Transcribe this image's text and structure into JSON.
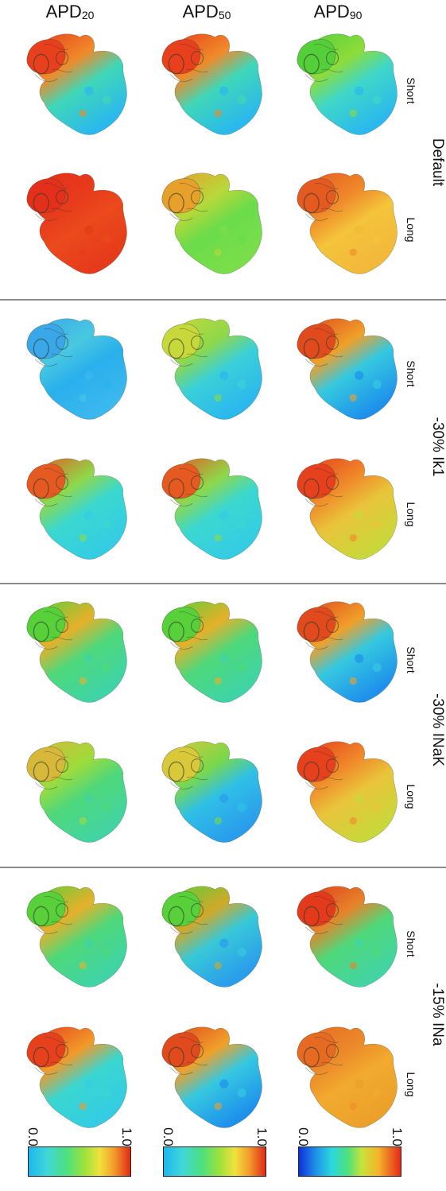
{
  "columns": [
    {
      "base": "APD",
      "sub": "20"
    },
    {
      "base": "APD",
      "sub": "50"
    },
    {
      "base": "APD",
      "sub": "90"
    }
  ],
  "groups": [
    {
      "label": "Default",
      "rows": [
        "Short",
        "Long"
      ]
    },
    {
      "label": "-30% Ik1",
      "rows": [
        "Short",
        "Long"
      ]
    },
    {
      "label": "-30% INaK",
      "rows": [
        "Short",
        "Long"
      ]
    },
    {
      "label": "-15% INa",
      "rows": [
        "Short",
        "Long"
      ]
    }
  ],
  "colorbars": [
    {
      "min": "0.0",
      "max": "1.0",
      "colormap": "jet-cyan"
    },
    {
      "min": "0.0",
      "max": "1.0",
      "colormap": "jet-cyan"
    },
    {
      "min": "0.0",
      "max": "1.0",
      "colormap": "jet"
    }
  ],
  "maps": [
    {
      "group": 0,
      "row": 0,
      "col": 0,
      "scheme": "hot-top-cool-bottom"
    },
    {
      "group": 0,
      "row": 0,
      "col": 1,
      "scheme": "hot-top-cool-bottom"
    },
    {
      "group": 0,
      "row": 0,
      "col": 2,
      "scheme": "green-top-cyan-bottom"
    },
    {
      "group": 0,
      "row": 1,
      "col": 0,
      "scheme": "all-red"
    },
    {
      "group": 0,
      "row": 1,
      "col": 1,
      "scheme": "yellow-green"
    },
    {
      "group": 0,
      "row": 1,
      "col": 2,
      "scheme": "orange-yellow"
    },
    {
      "group": 1,
      "row": 0,
      "col": 0,
      "scheme": "all-cyan-blue"
    },
    {
      "group": 1,
      "row": 0,
      "col": 1,
      "scheme": "yellowgreen-top-cyan-bottom"
    },
    {
      "group": 1,
      "row": 0,
      "col": 2,
      "scheme": "red-top-blue-bottom"
    },
    {
      "group": 1,
      "row": 1,
      "col": 0,
      "scheme": "hot-top-cyan-bottom"
    },
    {
      "group": 1,
      "row": 1,
      "col": 1,
      "scheme": "hot-top-cyan-bottom"
    },
    {
      "group": 1,
      "row": 1,
      "col": 2,
      "scheme": "red-top-yellow-bottom"
    },
    {
      "group": 2,
      "row": 0,
      "col": 0,
      "scheme": "green-mixed"
    },
    {
      "group": 2,
      "row": 0,
      "col": 1,
      "scheme": "green-mixed"
    },
    {
      "group": 2,
      "row": 0,
      "col": 2,
      "scheme": "red-top-blue-bottom"
    },
    {
      "group": 2,
      "row": 1,
      "col": 0,
      "scheme": "yellow-top-green-bottom"
    },
    {
      "group": 2,
      "row": 1,
      "col": 1,
      "scheme": "yellow-top-blue-bottom"
    },
    {
      "group": 2,
      "row": 1,
      "col": 2,
      "scheme": "red-top-yellow-bottom"
    },
    {
      "group": 3,
      "row": 0,
      "col": 0,
      "scheme": "green-mixed"
    },
    {
      "group": 3,
      "row": 0,
      "col": 1,
      "scheme": "green-top-blue-bottom"
    },
    {
      "group": 3,
      "row": 0,
      "col": 2,
      "scheme": "red-top-green-bottom"
    },
    {
      "group": 3,
      "row": 1,
      "col": 0,
      "scheme": "red-top-cyan-bottom"
    },
    {
      "group": 3,
      "row": 1,
      "col": 1,
      "scheme": "red-top-blue-bottom"
    },
    {
      "group": 3,
      "row": 1,
      "col": 2,
      "scheme": "orange-uniform"
    }
  ]
}
